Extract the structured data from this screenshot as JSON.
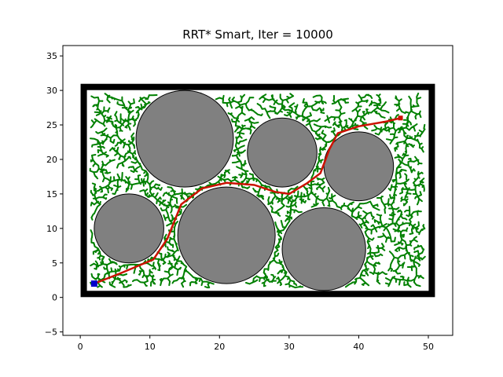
{
  "chart_data": {
    "type": "scatter",
    "title": "RRT* Smart, Iter = 10000",
    "xlim": [
      -2.5,
      53.5
    ],
    "ylim": [
      -5.5,
      36.5
    ],
    "xticks": [
      0,
      10,
      20,
      30,
      40,
      50
    ],
    "yticks": [
      -5,
      0,
      5,
      10,
      15,
      20,
      25,
      30,
      35
    ],
    "grid": false,
    "boundary": {
      "xmin": 0.5,
      "ymin": 0.5,
      "xmax": 50.5,
      "ymax": 30.5
    },
    "obstacles": [
      {
        "cx": 15,
        "cy": 23,
        "r": 7
      },
      {
        "cx": 21,
        "cy": 9,
        "r": 7
      },
      {
        "cx": 35,
        "cy": 7,
        "r": 6
      },
      {
        "cx": 7,
        "cy": 10,
        "r": 5
      },
      {
        "cx": 29,
        "cy": 21,
        "r": 5
      },
      {
        "cx": 40,
        "cy": 19,
        "r": 5
      }
    ],
    "start": {
      "x": 2,
      "y": 2
    },
    "goal": {
      "x": 46,
      "y": 26
    },
    "path": {
      "x": [
        2,
        6,
        10.5,
        12.5,
        14.5,
        17.5,
        21,
        25,
        28,
        30,
        32.5,
        34.5,
        35.8,
        37,
        40,
        44,
        46
      ],
      "y": [
        2,
        3.6,
        5.5,
        8.5,
        13.5,
        15.8,
        16.6,
        16.3,
        15.3,
        15,
        16.5,
        18,
        21.5,
        23.8,
        24.8,
        25.5,
        26
      ]
    },
    "colors": {
      "tree": "#008000",
      "path": "#cc1100",
      "obstacle": "#808080",
      "boundary": "#000000",
      "start": "#0000cc",
      "goal": "#cc1100"
    }
  }
}
